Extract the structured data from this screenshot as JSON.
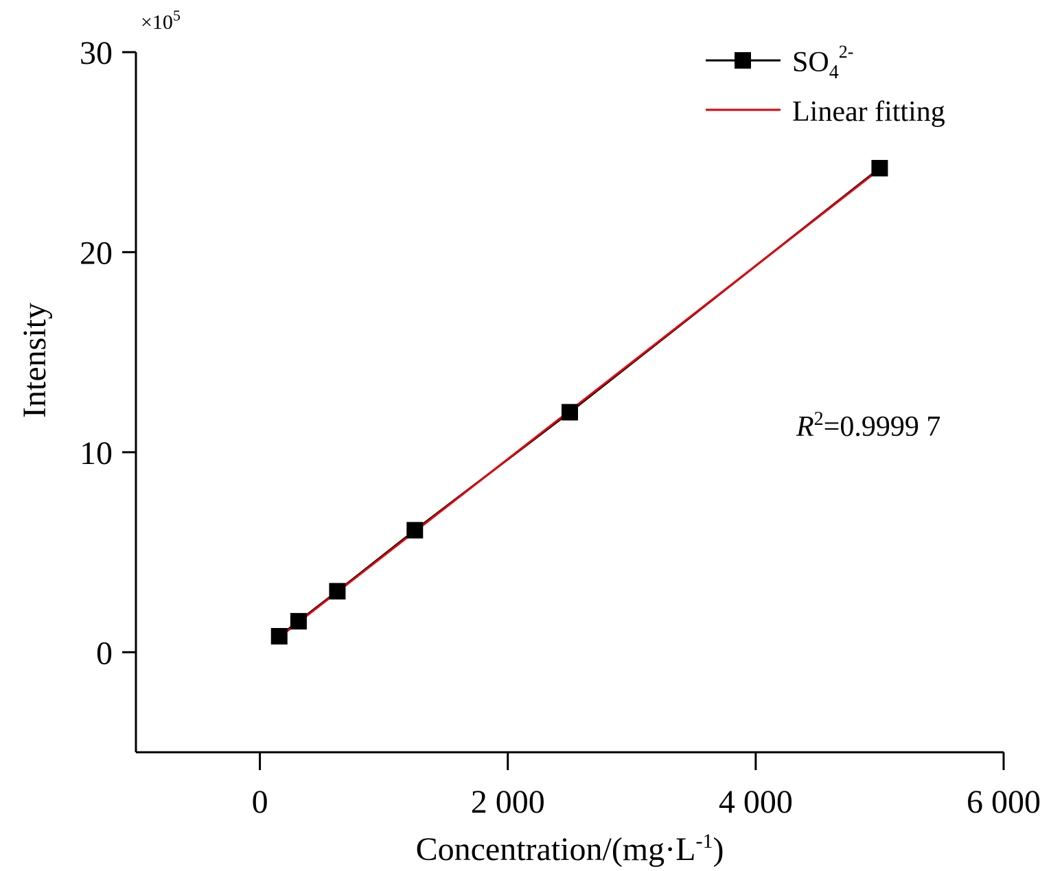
{
  "chart_data": {
    "type": "scatter",
    "title": "",
    "xlabel": {
      "main": "Concentration/(mg·L",
      "sup": "-1",
      "end": ")"
    },
    "ylabel": "Intensity",
    "y_multiplier": {
      "prefix": "×10",
      "exp": "5"
    },
    "xlim": [
      -1000,
      6000
    ],
    "ylim": [
      -5,
      30
    ],
    "x_ticks": [
      0,
      2000,
      4000,
      6000
    ],
    "x_tick_labels": [
      "0",
      "2 000",
      "4 000",
      "6 000"
    ],
    "y_ticks": [
      0,
      10,
      20,
      30
    ],
    "y_tick_labels": [
      "0",
      "10",
      "20",
      "30"
    ],
    "grid": false,
    "legend_position": "top-right",
    "series": [
      {
        "name": "SO4 2-",
        "name_parts": {
          "base": "SO",
          "sub": "4",
          "sup": "2-"
        },
        "marker": "square",
        "color": "#000000",
        "x": [
          156,
          312,
          625,
          1250,
          2500,
          5000
        ],
        "y": [
          0.8,
          1.55,
          3.05,
          6.1,
          12.0,
          24.2
        ]
      },
      {
        "name": "Linear fitting",
        "color": "#e0000b",
        "type": "line",
        "x": [
          156,
          5000
        ],
        "y": [
          0.75,
          24.15
        ]
      }
    ],
    "annotation": {
      "r": "R",
      "sup": "2",
      "rest": "=0.9999 7"
    }
  }
}
